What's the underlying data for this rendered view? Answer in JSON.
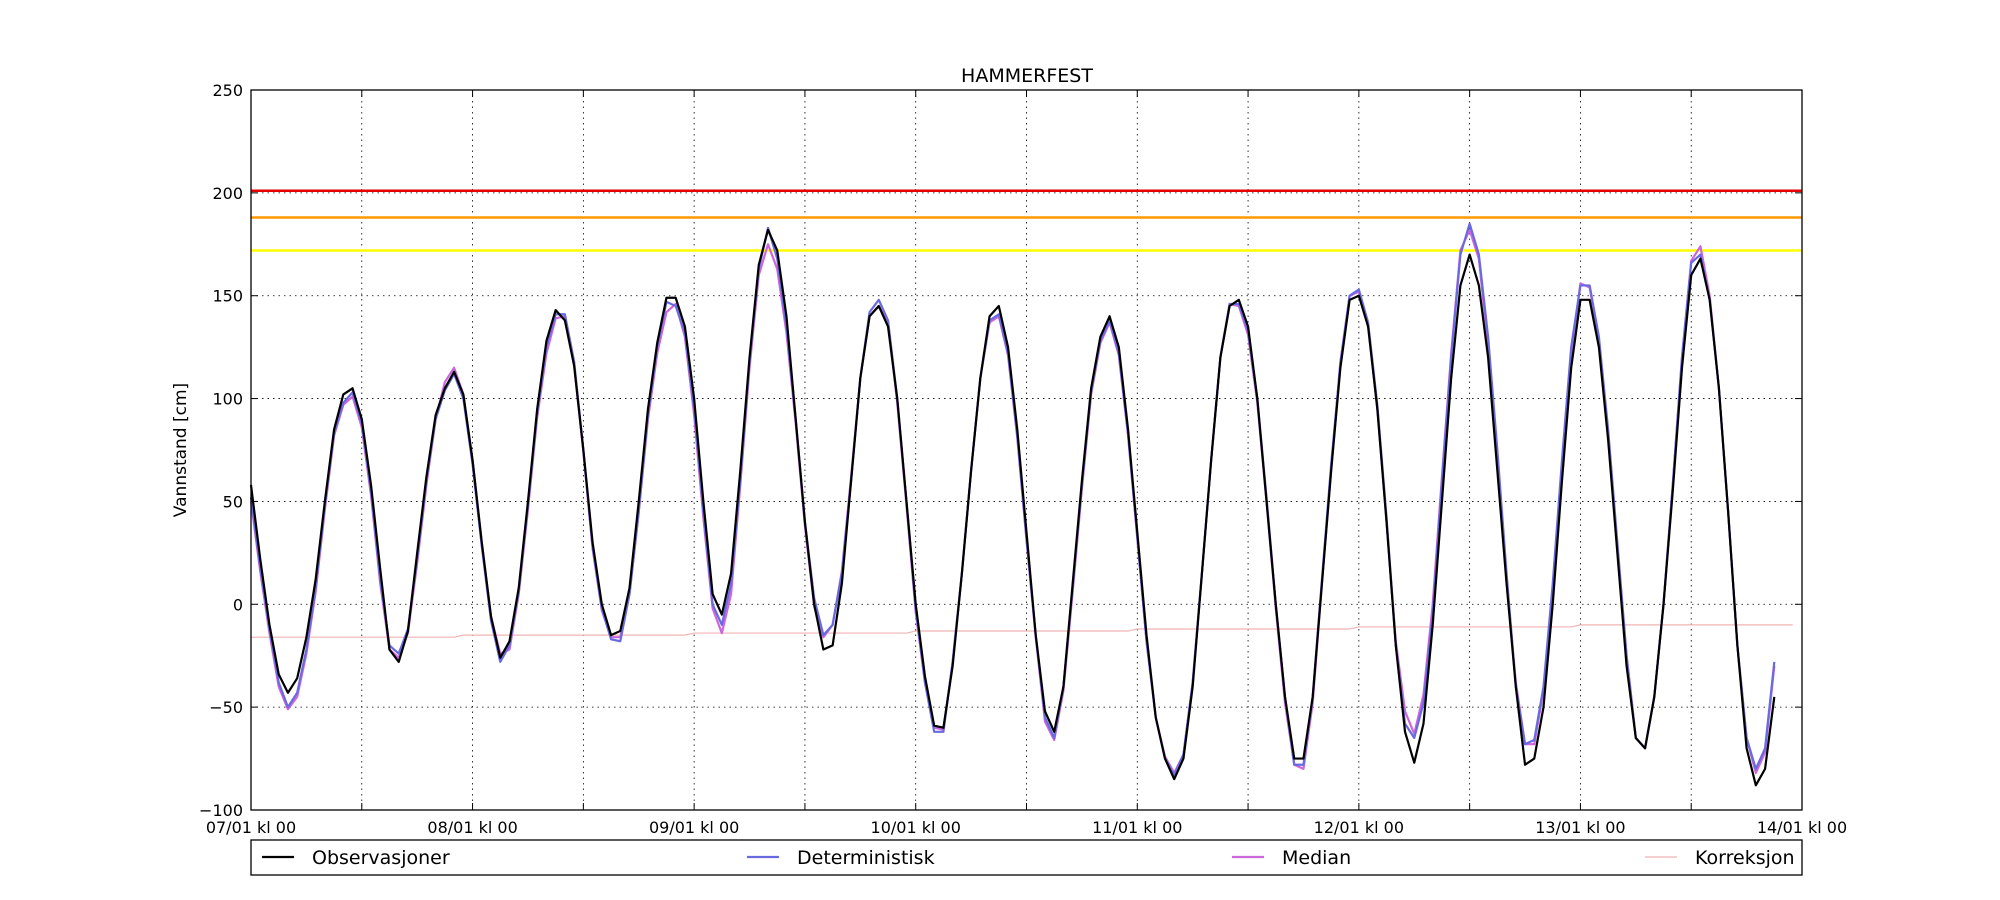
{
  "chart_data": {
    "type": "line",
    "title": "HAMMERFEST",
    "xlabel": "",
    "ylabel": "Vannstand [cm]",
    "ylim": [
      -100,
      250
    ],
    "yticks": [
      -100,
      -50,
      0,
      50,
      100,
      150,
      200,
      250
    ],
    "ytick_labels": [
      "−100",
      "−50",
      "0",
      "50",
      "100",
      "150",
      "200",
      "250"
    ],
    "xlim_hours": [
      0,
      168
    ],
    "xticks": [
      {
        "hour": 0,
        "label": "07/01 kl 00"
      },
      {
        "hour": 24,
        "label": "08/01 kl 00"
      },
      {
        "hour": 48,
        "label": "09/01 kl 00"
      },
      {
        "hour": 72,
        "label": "10/01 kl 00"
      },
      {
        "hour": 96,
        "label": "11/01 kl 00"
      },
      {
        "hour": 120,
        "label": "12/01 kl 00"
      },
      {
        "hour": 144,
        "label": "13/01 kl 00"
      },
      {
        "hour": 168,
        "label": "14/01 kl 00"
      }
    ],
    "minor_grid_hours": [
      12,
      36,
      60,
      84,
      108,
      132,
      156
    ],
    "grid": true,
    "legend_position": "bottom",
    "threshold_lines": [
      {
        "value": 201,
        "color": "#e60000"
      },
      {
        "value": 188,
        "color": "#ff9900"
      },
      {
        "value": 172,
        "color": "#ffff00"
      }
    ],
    "series": [
      {
        "name": "Observasjoner",
        "color": "#000000",
        "width": 2.2,
        "values": [
          58,
          22,
          -10,
          -34,
          -43,
          -36,
          -16,
          12,
          50,
          85,
          102,
          105,
          90,
          58,
          17,
          -22,
          -28,
          -13,
          25,
          62,
          92,
          105,
          113,
          102,
          70,
          30,
          -6,
          -26,
          -18,
          8,
          50,
          95,
          128,
          143,
          138,
          116,
          75,
          30,
          0,
          -15,
          -13,
          8,
          50,
          95,
          127,
          149,
          149,
          135,
          100,
          50,
          5,
          -5,
          15,
          65,
          120,
          165,
          182,
          172,
          140,
          90,
          40,
          0,
          -22,
          -20,
          10,
          60,
          110,
          140,
          145,
          135,
          100,
          50,
          0,
          -35,
          -59,
          -60,
          -30,
          15,
          65,
          110,
          140,
          145,
          125,
          85,
          35,
          -15,
          -52,
          -62,
          -40,
          10,
          60,
          105,
          130,
          140,
          125,
          85,
          35,
          -15,
          -55,
          -75,
          -85,
          -75,
          -40,
          15,
          70,
          120,
          145,
          148,
          135,
          100,
          50,
          0,
          -45,
          -75,
          -75,
          -45,
          10,
          65,
          115,
          148,
          150,
          135,
          95,
          40,
          -20,
          -62,
          -77,
          -58,
          -10,
          50,
          110,
          155,
          170,
          155,
          120,
          65,
          10,
          -40,
          -78,
          -75,
          -50,
          0,
          60,
          115,
          148,
          148,
          125,
          80,
          25,
          -30,
          -65,
          -70,
          -45,
          0,
          55,
          115,
          160,
          168,
          148,
          105,
          45,
          -20,
          -70,
          -88,
          -80,
          -45
        ]
      },
      {
        "name": "Deterministisk",
        "color": "#6a6ae0",
        "width": 2.2,
        "values": [
          52,
          18,
          -12,
          -38,
          -50,
          -43,
          -22,
          8,
          48,
          83,
          98,
          103,
          88,
          55,
          12,
          -20,
          -24,
          -12,
          22,
          60,
          90,
          104,
          112,
          100,
          68,
          28,
          -8,
          -28,
          -20,
          6,
          48,
          93,
          125,
          141,
          141,
          118,
          75,
          28,
          -2,
          -17,
          -18,
          5,
          45,
          92,
          125,
          147,
          145,
          132,
          95,
          45,
          0,
          -10,
          10,
          60,
          118,
          163,
          183,
          168,
          135,
          90,
          40,
          3,
          -15,
          -10,
          15,
          60,
          110,
          142,
          148,
          138,
          100,
          50,
          -2,
          -38,
          -62,
          -62,
          -28,
          15,
          65,
          110,
          138,
          141,
          122,
          82,
          32,
          -15,
          -55,
          -65,
          -40,
          8,
          58,
          103,
          128,
          138,
          122,
          83,
          33,
          -18,
          -55,
          -75,
          -83,
          -73,
          -38,
          15,
          70,
          120,
          146,
          146,
          133,
          100,
          52,
          0,
          -45,
          -78,
          -78,
          -45,
          12,
          68,
          117,
          150,
          153,
          137,
          97,
          42,
          -20,
          -58,
          -65,
          -48,
          -5,
          60,
          120,
          170,
          185,
          170,
          130,
          75,
          15,
          -40,
          -68,
          -66,
          -40,
          10,
          70,
          125,
          155,
          155,
          130,
          85,
          30,
          -25,
          -65,
          -70,
          -45,
          0,
          58,
          120,
          166,
          170,
          148,
          105,
          45,
          -20,
          -65,
          -80,
          -70,
          -28
        ]
      },
      {
        "name": "Median",
        "color": "#cc66dd",
        "width": 2.2,
        "values": [
          50,
          16,
          -14,
          -40,
          -51,
          -45,
          -24,
          6,
          46,
          82,
          97,
          101,
          86,
          53,
          10,
          -22,
          -26,
          -14,
          20,
          58,
          90,
          108,
          115,
          102,
          70,
          30,
          -6,
          -24,
          -22,
          5,
          46,
          91,
          122,
          139,
          140,
          116,
          74,
          27,
          -3,
          -16,
          -16,
          5,
          45,
          90,
          122,
          142,
          146,
          130,
          92,
          42,
          -2,
          -14,
          5,
          58,
          115,
          160,
          175,
          163,
          132,
          88,
          38,
          -1,
          -16,
          -10,
          16,
          62,
          110,
          140,
          145,
          137,
          98,
          48,
          -4,
          -38,
          -60,
          -61,
          -28,
          15,
          65,
          110,
          137,
          140,
          121,
          81,
          31,
          -16,
          -57,
          -66,
          -42,
          6,
          56,
          102,
          127,
          137,
          121,
          82,
          32,
          -18,
          -55,
          -74,
          -82,
          -73,
          -38,
          15,
          70,
          120,
          146,
          145,
          131,
          98,
          50,
          -2,
          -48,
          -78,
          -80,
          -48,
          10,
          65,
          118,
          150,
          152,
          136,
          95,
          40,
          -18,
          -52,
          -63,
          -44,
          0,
          62,
          122,
          172,
          182,
          168,
          125,
          70,
          12,
          -38,
          -68,
          -68,
          -42,
          8,
          68,
          122,
          156,
          154,
          128,
          82,
          28,
          -25,
          -65,
          -70,
          -45,
          0,
          58,
          120,
          167,
          174,
          150,
          105,
          45,
          -20,
          -65,
          -82,
          -72,
          -30
        ]
      },
      {
        "name": "Korreksjon",
        "color": "#f0b4b4",
        "width": 1.2,
        "values": [
          -16,
          -16,
          -16,
          -16,
          -16,
          -16,
          -16,
          -16,
          -16,
          -16,
          -16,
          -16,
          -16,
          -16,
          -16,
          -16,
          -16,
          -16,
          -16,
          -16,
          -16,
          -16,
          -16,
          -15,
          -15,
          -15,
          -15,
          -15,
          -15,
          -15,
          -15,
          -15,
          -15,
          -15,
          -15,
          -15,
          -15,
          -15,
          -15,
          -15,
          -15,
          -15,
          -15,
          -15,
          -15,
          -15,
          -15,
          -15,
          -14,
          -14,
          -14,
          -14,
          -14,
          -14,
          -14,
          -14,
          -14,
          -14,
          -14,
          -14,
          -14,
          -14,
          -14,
          -14,
          -14,
          -14,
          -14,
          -14,
          -14,
          -14,
          -14,
          -14,
          -13,
          -13,
          -13,
          -13,
          -13,
          -13,
          -13,
          -13,
          -13,
          -13,
          -13,
          -13,
          -13,
          -13,
          -13,
          -13,
          -13,
          -13,
          -13,
          -13,
          -13,
          -13,
          -13,
          -13,
          -12,
          -12,
          -12,
          -12,
          -12,
          -12,
          -12,
          -12,
          -12,
          -12,
          -12,
          -12,
          -12,
          -12,
          -12,
          -12,
          -12,
          -12,
          -12,
          -12,
          -12,
          -12,
          -12,
          -12,
          -11,
          -11,
          -11,
          -11,
          -11,
          -11,
          -11,
          -11,
          -11,
          -11,
          -11,
          -11,
          -11,
          -11,
          -11,
          -11,
          -11,
          -11,
          -11,
          -11,
          -11,
          -11,
          -11,
          -11,
          -10,
          -10,
          -10,
          -10,
          -10,
          -10,
          -10,
          -10,
          -10,
          -10,
          -10,
          -10,
          -10,
          -10,
          -10,
          -10,
          -10,
          -10,
          -10,
          -10,
          -10,
          -10,
          -10,
          -10
        ]
      }
    ]
  }
}
